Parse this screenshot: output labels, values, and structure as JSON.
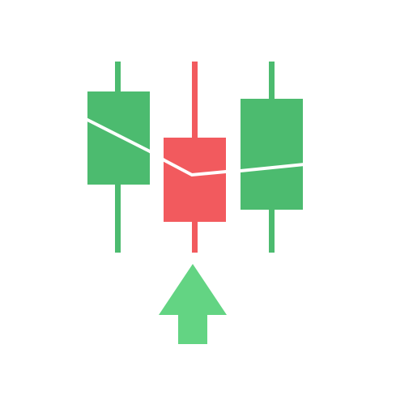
{
  "illustration": {
    "icon": "candlestick-pattern-bullish-icon",
    "colors": {
      "bullish": "#4cbb6f",
      "bearish": "#f25a5e",
      "arrow": "#63d483",
      "trend_line": "#ffffff",
      "background": "#ffffff"
    },
    "candles": [
      {
        "icon": "bullish-candle-icon",
        "direction": "up"
      },
      {
        "icon": "bearish-candle-icon",
        "direction": "down"
      },
      {
        "icon": "bullish-candle-icon",
        "direction": "up"
      }
    ],
    "arrow": {
      "icon": "arrow-up-icon",
      "direction": "up"
    }
  }
}
